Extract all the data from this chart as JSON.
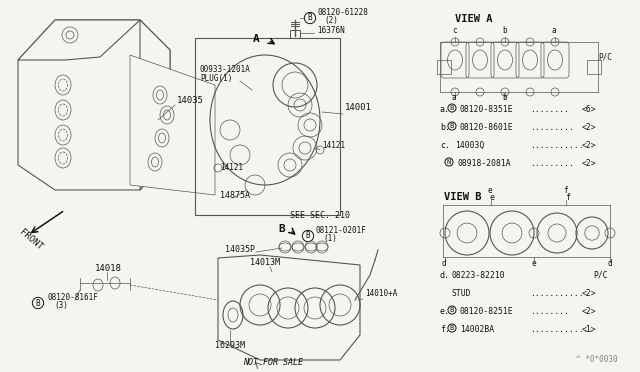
{
  "bg": "#f5f5f0",
  "fig_w": 6.4,
  "fig_h": 3.72,
  "dpi": 100,
  "watermark": "^ *0*0030",
  "view_a_entries": [
    [
      "a.",
      "B",
      "08120-8351E",
      "........",
      "<6>"
    ],
    [
      "b.",
      "B",
      "08120-8601E",
      ".........",
      "<2>"
    ],
    [
      "c.",
      "",
      "14003Q",
      "...........",
      "<2>"
    ],
    [
      "",
      "N",
      "08918-2081A",
      ".........",
      "<2>"
    ]
  ],
  "view_b_entries": [
    [
      "d.",
      "",
      "08223-82210",
      "",
      "P/C"
    ],
    [
      "",
      "",
      "STUD",
      "...........",
      "<2>"
    ],
    [
      "e.",
      "B",
      "08120-8251E",
      "........",
      "<2>"
    ],
    [
      "f.",
      "B",
      "14002BA",
      ".............",
      "<1>"
    ]
  ]
}
